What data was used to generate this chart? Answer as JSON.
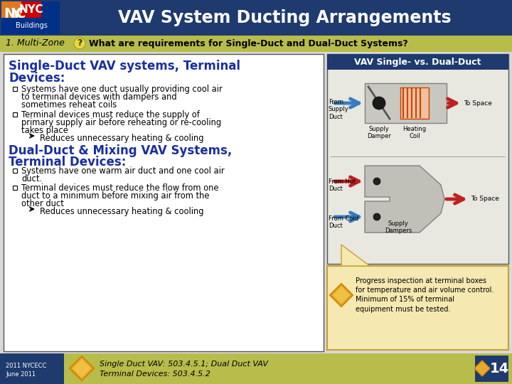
{
  "title": "VAV System Ducting Arrangements",
  "subtitle_num": "1. Multi-Zone",
  "subtitle_text": "What are requirements for Single-Duct and Dual-Duct Systems?",
  "header_bg": "#1e3a6e",
  "header_text_color": "#ffffff",
  "subheader_bg": "#b8bc4a",
  "body_bg": "#d8d8d8",
  "left_panel_bg": "#ffffff",
  "left_panel_border": "#555555",
  "right_panel_header_bg": "#1e3a6e",
  "right_panel_header_text": "VAV Single- vs. Dual-Duct",
  "right_panel_header_text_color": "#ffffff",
  "right_panel_diagram_bg": "#e8e8e0",
  "right_panel_border": "#555555",
  "section1_color": "#1a2fa0",
  "section2_color": "#1a2fa0",
  "text_color": "#000000",
  "arrow_blue": "#3b7bbf",
  "arrow_red": "#c02020",
  "diagram_box_bg": "#c8c8c0",
  "progress_bg": "#f5e8b0",
  "progress_border": "#c8a030",
  "footer_bg": "#b8bc4a",
  "footer_dark_bg": "#1e3a6e",
  "footer_text_color": "#000000",
  "footer_page": "14",
  "footer_ref1": "Single Duct VAV: 503.4.5.1; Dual Duct VAV",
  "footer_ref2": "Terminal Devices: 503.4.5.2",
  "progress_text": "Progress inspection at terminal boxes\nfor temperature and air volume control.\nMinimum of 15% of terminal\nequipment must be tested.",
  "nyc_red": "#cc0000",
  "nyc_blue": "#003087",
  "nyc_orange": "#e07820"
}
